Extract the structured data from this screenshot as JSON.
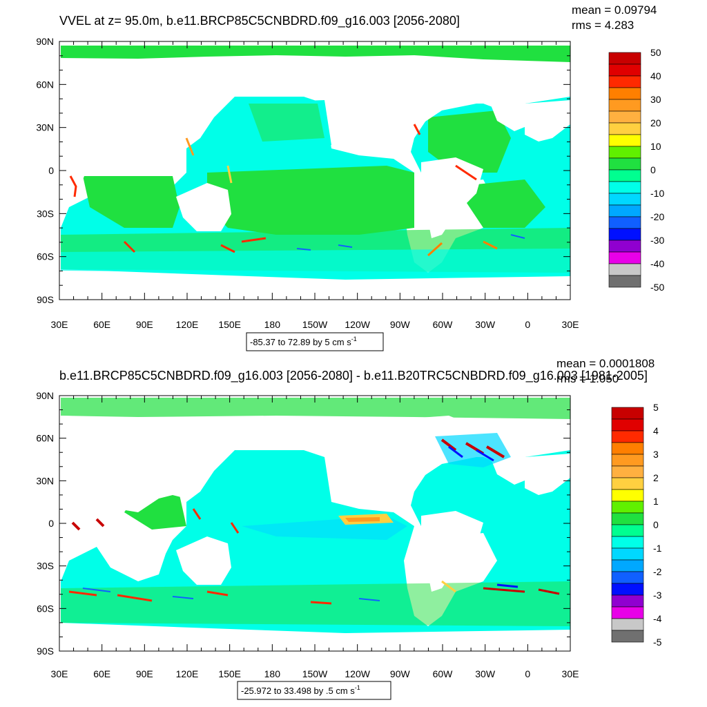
{
  "chart_data": [
    {
      "type": "heatmap",
      "title": "VVEL at z=  95.0m, b.e11.BRCP85C5CNBDRD.f09_g16.003 [2056-2080]",
      "mean_text": "mean = 0.09794",
      "rms_text": "rms = 4.283",
      "range_text": "-85.37 to 72.89 by 5 cm s",
      "range_sup": "-1",
      "x_ticks": [
        "30E",
        "60E",
        "90E",
        "120E",
        "150E",
        "180",
        "150W",
        "120W",
        "90W",
        "60W",
        "30W",
        "0",
        "30E"
      ],
      "y_ticks": [
        "90N",
        "60N",
        "30N",
        "0",
        "30S",
        "60S",
        "90S"
      ],
      "colorbar_labels": [
        "50",
        "40",
        "30",
        "20",
        "10",
        "0",
        "-10",
        "-20",
        "-30",
        "-40",
        "-50"
      ],
      "colorbar_colors": [
        "#c80000",
        "#e00000",
        "#ff2a00",
        "#ff7f00",
        "#ff9a20",
        "#ffb040",
        "#ffd040",
        "#ffff00",
        "#60f000",
        "#20e040",
        "#00ff90",
        "#00ffe8",
        "#00d8ff",
        "#00a8ff",
        "#1060ff",
        "#0010ff",
        "#9000d0",
        "#e800e8",
        "#c8c8c8",
        "#707070"
      ],
      "colorbar_range": [
        -50,
        50
      ],
      "grid": false
    },
    {
      "type": "heatmap",
      "title": "b.e11.BRCP85C5CNBDRD.f09_g16.003 [2056-2080] - b.e11.B20TRC5CNBDRD.f09_g16.003 [1981-2005]",
      "mean_text": "mean = 0.0001808",
      "rms_text": "rms = 1.050",
      "range_text": "-25.972 to 33.498 by .5 cm s",
      "range_sup": "-1",
      "x_ticks": [
        "30E",
        "60E",
        "90E",
        "120E",
        "150E",
        "180",
        "150W",
        "120W",
        "90W",
        "60W",
        "30W",
        "0",
        "30E"
      ],
      "y_ticks": [
        "90N",
        "60N",
        "30N",
        "0",
        "30S",
        "60S",
        "90S"
      ],
      "colorbar_labels": [
        "5",
        "4",
        "3",
        "2",
        "1",
        "0",
        "-1",
        "-2",
        "-3",
        "-4",
        "-5"
      ],
      "colorbar_colors": [
        "#c80000",
        "#e00000",
        "#ff2a00",
        "#ff7f00",
        "#ff9a20",
        "#ffb040",
        "#ffd040",
        "#ffff00",
        "#60f000",
        "#20e040",
        "#00ff90",
        "#00ffe8",
        "#00d8ff",
        "#00a8ff",
        "#1060ff",
        "#0010ff",
        "#9000d0",
        "#e800e8",
        "#c8c8c8",
        "#707070"
      ],
      "colorbar_range": [
        -5,
        5
      ],
      "grid": false
    }
  ]
}
